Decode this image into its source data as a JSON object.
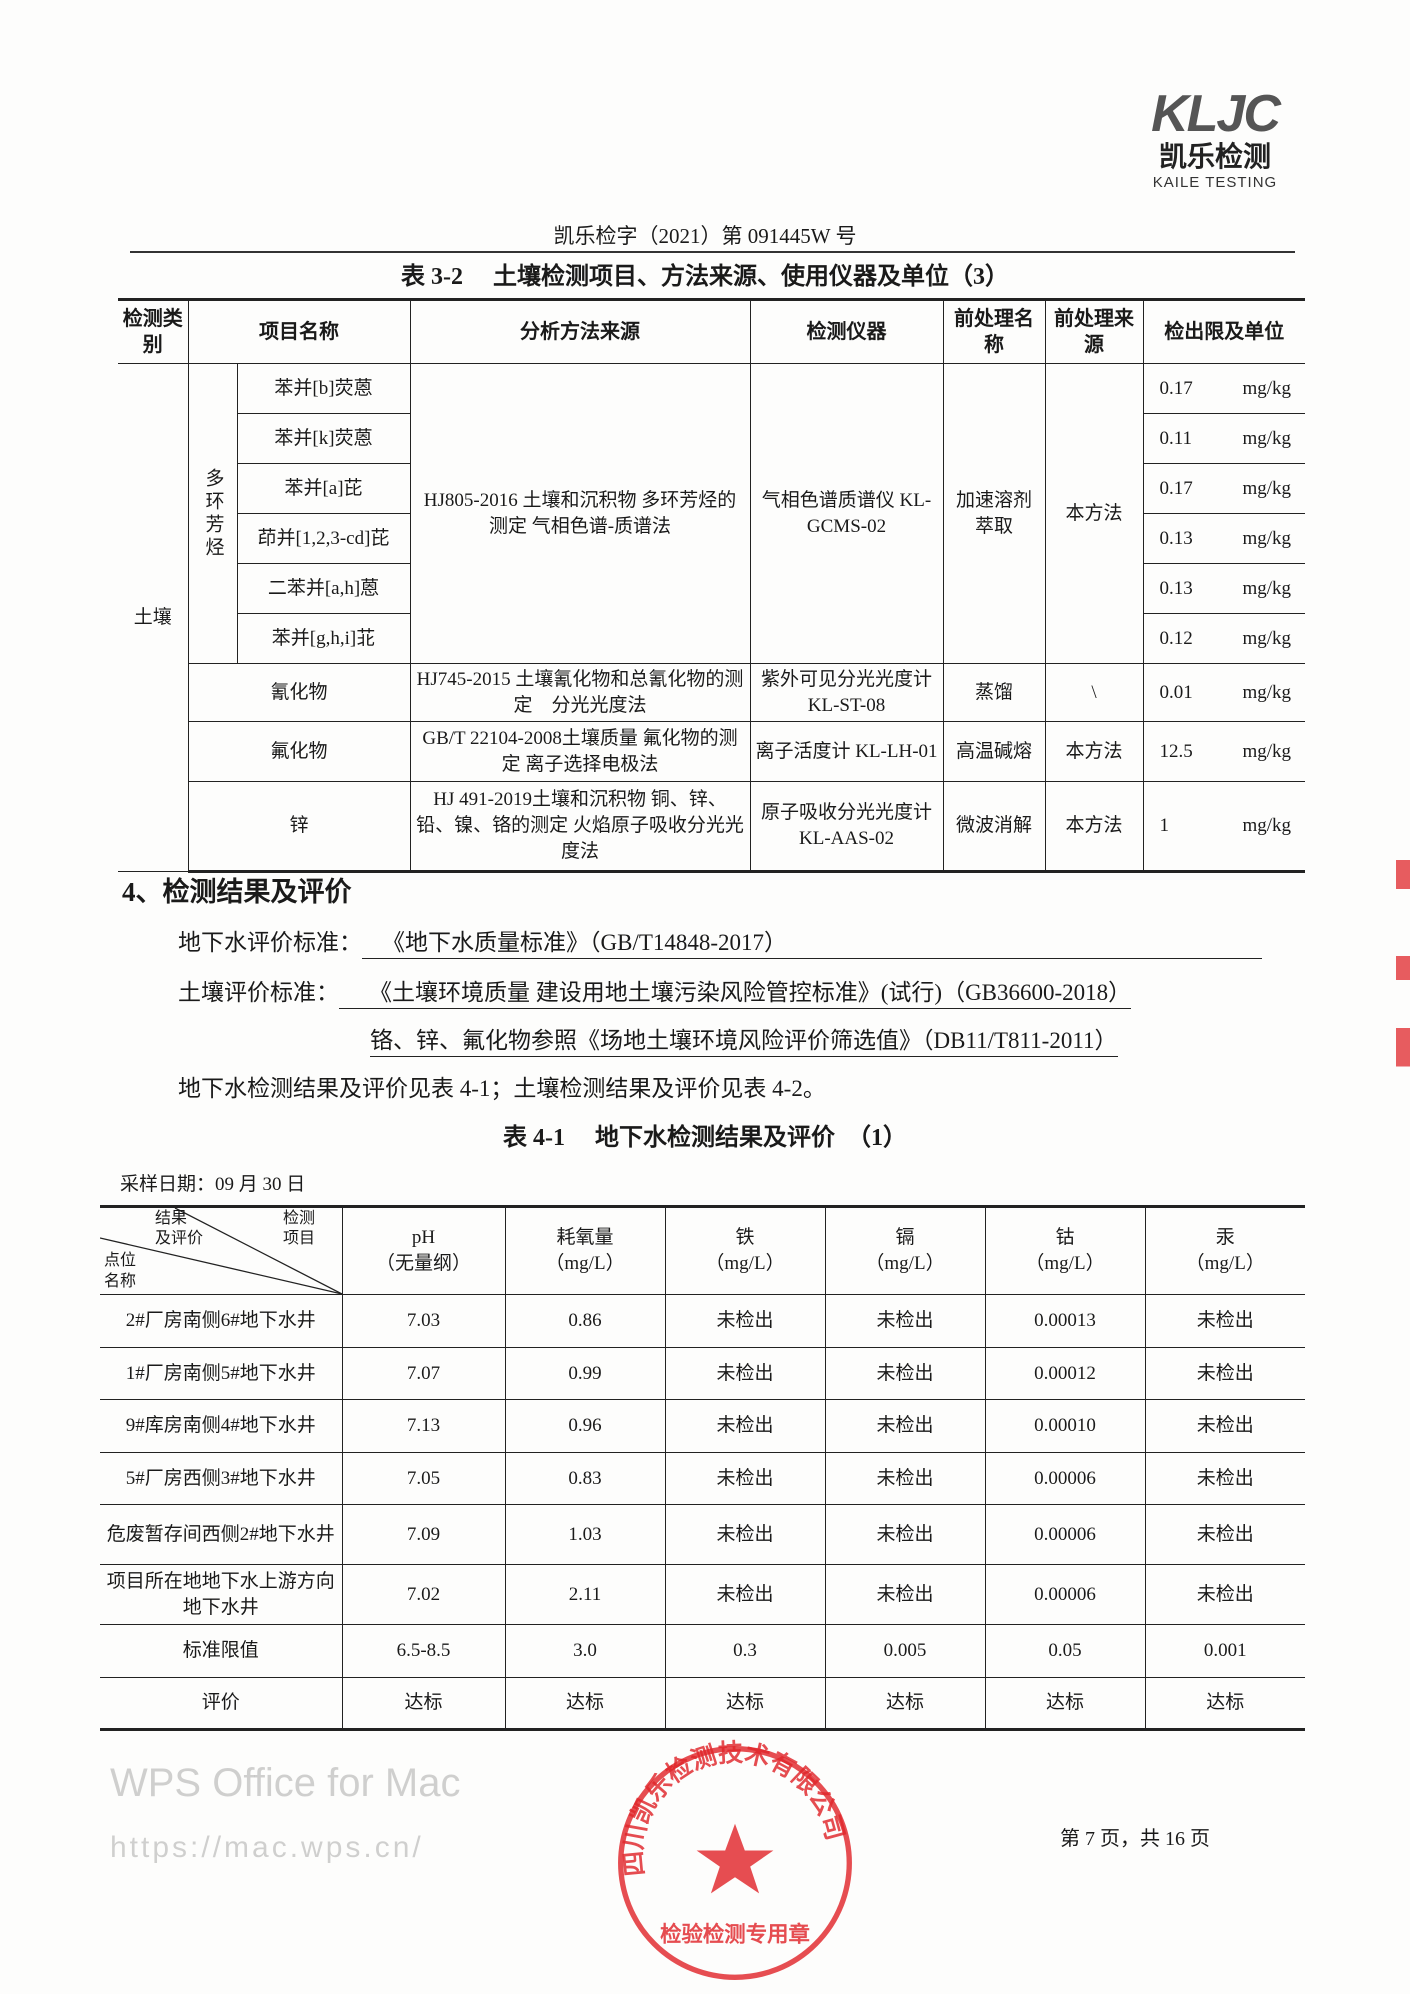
{
  "logo": {
    "mark": "KLJC",
    "cn": "凯乐检测",
    "en": "KAILE TESTING"
  },
  "header": {
    "doc_number": "凯乐检字（2021）第 091445W 号"
  },
  "table32": {
    "title": "表 3-2　 土壤检测项目、方法来源、使用仪器及单位（3）",
    "headers": [
      "检测类别",
      "项目名称",
      "分析方法来源",
      "检测仪器",
      "前处理名称",
      "前处理来源",
      "检出限及单位"
    ],
    "category": "土壤",
    "group": "多环芳烃",
    "pah_items": [
      {
        "name": "苯并[b]荧蒽",
        "limit": "0.17",
        "unit": "mg/kg"
      },
      {
        "name": "苯并[k]荧蒽",
        "limit": "0.11",
        "unit": "mg/kg"
      },
      {
        "name": "苯并[a]芘",
        "limit": "0.17",
        "unit": "mg/kg"
      },
      {
        "name": "茚并[1,2,3-cd]芘",
        "limit": "0.13",
        "unit": "mg/kg"
      },
      {
        "name": "二苯并[a,h]蒽",
        "limit": "0.13",
        "unit": "mg/kg"
      },
      {
        "name": "苯并[g,h,i]苝",
        "limit": "0.12",
        "unit": "mg/kg"
      }
    ],
    "pah_method": "HJ805-2016 土壤和沉积物 多环芳烃的测定 气相色谱-质谱法",
    "pah_instrument": "气相色谱质谱仪 KL-GCMS-02",
    "pah_pretreat": "加速溶剂萃取",
    "pah_source": "本方法",
    "others": [
      {
        "name": "氰化物",
        "method": "HJ745-2015 土壤氰化物和总氰化物的测定　分光光度法",
        "instrument": "紫外可见分光光度计 KL-ST-08",
        "pretreat": "蒸馏",
        "source": "\\",
        "limit": "0.01",
        "unit": "mg/kg"
      },
      {
        "name": "氟化物",
        "method": "GB/T 22104-2008土壤质量 氟化物的测定 离子选择电极法",
        "instrument": "离子活度计 KL-LH-01",
        "pretreat": "高温碱熔",
        "source": "本方法",
        "limit": "12.5",
        "unit": "mg/kg"
      },
      {
        "name": "锌",
        "method": "HJ 491-2019土壤和沉积物 铜、锌、铅、镍、铬的测定 火焰原子吸收分光光度法",
        "instrument": "原子吸收分光光度计KL-AAS-02",
        "pretreat": "微波消解",
        "source": "本方法",
        "limit": "1",
        "unit": "mg/kg"
      }
    ]
  },
  "section4": {
    "heading": "4、检测结果及评价",
    "gw_label": "地下水评价标准：",
    "gw_value": "《地下水质量标准》（GB/T14848-2017）",
    "soil_label": "土壤评价标准：",
    "soil_value1": "《土壤环境质量 建设用地土壤污染风险管控标准》(试行)（GB36600-2018）",
    "soil_value2": "铬、锌、氟化物参照《场地土壤环境风险评价筛选值》（DB11/T811-2011）",
    "summary": "地下水检测结果及评价见表 4-1；土壤检测结果及评价见表 4-2。"
  },
  "table41": {
    "title": "表 4-1　 地下水检测结果及评价　（1）",
    "sample_date": "采样日期：09 月 30 日",
    "corner": {
      "a": "结果",
      "b": "及评价",
      "c": "检测",
      "d": "项目",
      "e": "点位",
      "f": "名称"
    },
    "columns": [
      {
        "name": "pH",
        "unit": "（无量纲）"
      },
      {
        "name": "耗氧量",
        "unit": "（mg/L）"
      },
      {
        "name": "铁",
        "unit": "（mg/L）"
      },
      {
        "name": "镉",
        "unit": "（mg/L）"
      },
      {
        "name": "钴",
        "unit": "（mg/L）"
      },
      {
        "name": "汞",
        "unit": "（mg/L）"
      }
    ],
    "rows": [
      {
        "site": "2#厂房南侧6#地下水井",
        "values": [
          "7.03",
          "0.86",
          "未检出",
          "未检出",
          "0.00013",
          "未检出"
        ]
      },
      {
        "site": "1#厂房南侧5#地下水井",
        "values": [
          "7.07",
          "0.99",
          "未检出",
          "未检出",
          "0.00012",
          "未检出"
        ]
      },
      {
        "site": "9#库房南侧4#地下水井",
        "values": [
          "7.13",
          "0.96",
          "未检出",
          "未检出",
          "0.00010",
          "未检出"
        ]
      },
      {
        "site": "5#厂房西侧3#地下水井",
        "values": [
          "7.05",
          "0.83",
          "未检出",
          "未检出",
          "0.00006",
          "未检出"
        ]
      },
      {
        "site": "危废暂存间西侧2#地下水井",
        "values": [
          "7.09",
          "1.03",
          "未检出",
          "未检出",
          "0.00006",
          "未检出"
        ]
      },
      {
        "site": "项目所在地地下水上游方向地下水井",
        "values": [
          "7.02",
          "2.11",
          "未检出",
          "未检出",
          "0.00006",
          "未检出"
        ]
      },
      {
        "site": "标准限值",
        "values": [
          "6.5-8.5",
          "3.0",
          "0.3",
          "0.005",
          "0.05",
          "0.001"
        ]
      },
      {
        "site": "评价",
        "values": [
          "达标",
          "达标",
          "达标",
          "达标",
          "达标",
          "达标"
        ]
      }
    ]
  },
  "stamp": {
    "outer": "四川凯乐检测技术有限公司",
    "inner": "检验检测专用章",
    "color": "#e0262b"
  },
  "watermark": {
    "line1": "WPS Office for Mac",
    "line2": "https://mac.wps.cn/"
  },
  "footer": {
    "page": "第 7 页，共 16 页"
  }
}
